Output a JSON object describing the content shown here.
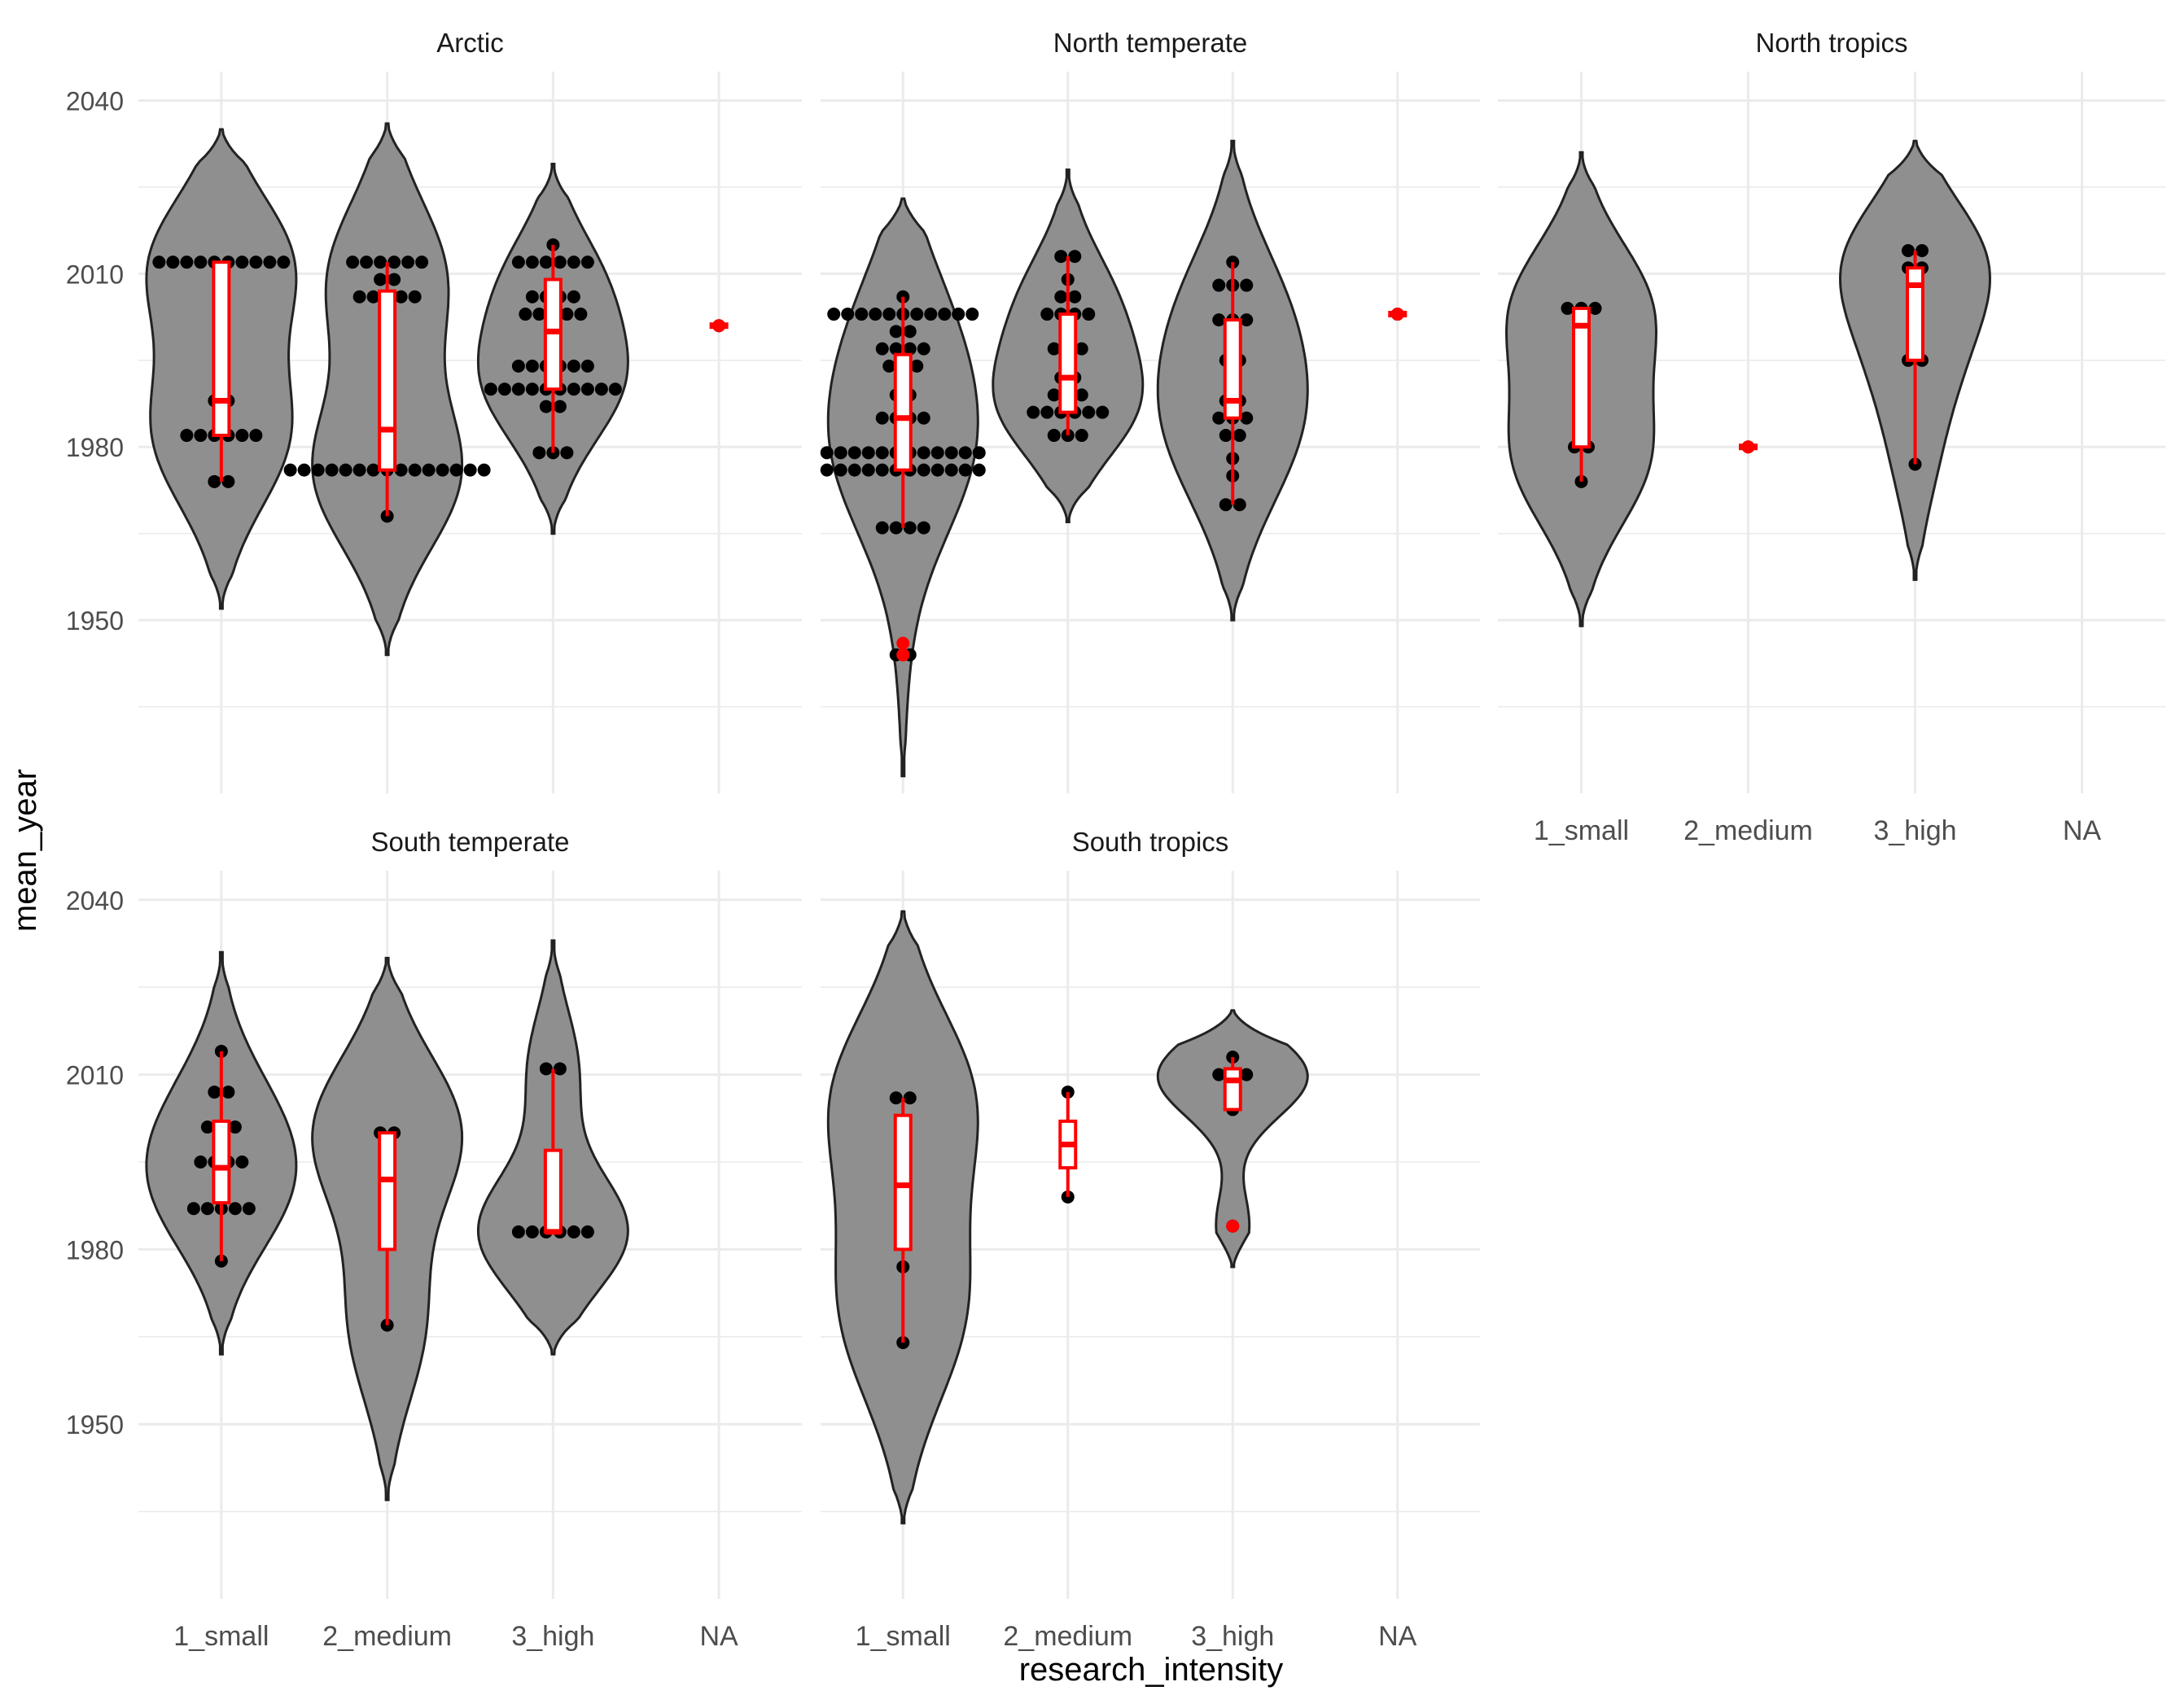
{
  "chart_data": {
    "type": "violin",
    "facet_by": "region",
    "xlabel": "research_intensity",
    "ylabel": "mean_year",
    "categories": [
      "1_small",
      "2_medium",
      "3_high",
      "NA"
    ],
    "ylim": [
      1920,
      2045
    ],
    "y_ticks": [
      1950,
      1980,
      2010,
      2040
    ],
    "grid": true,
    "colors": {
      "violin_fill": "#8f8f8f",
      "violin_stroke": "#222222",
      "box": "#ff0000",
      "point": "#000000",
      "grid": "#ebebeb",
      "text": "#4d4d4d"
    },
    "panels": [
      {
        "title": "Arctic",
        "groups": [
          {
            "category": "1_small",
            "box": {
              "min": 1974,
              "q1": 1982,
              "median": 1988,
              "q3": 2012,
              "max": 2012
            },
            "violin_range": [
              1952,
              2035
            ],
            "points": [
              1974,
              1974,
              1982,
              1982,
              1982,
              1982,
              1982,
              1982,
              1988,
              1988,
              1995,
              2012,
              2012,
              2012,
              2012,
              2012,
              2012,
              2012,
              2012,
              2012,
              2012
            ]
          },
          {
            "category": "2_medium",
            "box": {
              "min": 1968,
              "q1": 1976,
              "median": 1983,
              "q3": 2007,
              "max": 2012
            },
            "violin_range": [
              1944,
              2036
            ],
            "points": [
              1968,
              1976,
              1976,
              1976,
              1976,
              1976,
              1976,
              1976,
              1976,
              1976,
              1976,
              1976,
              1976,
              1976,
              1976,
              1976,
              2006,
              2006,
              2006,
              2006,
              2006,
              2009,
              2009,
              2012,
              2012,
              2012,
              2012,
              2012,
              2012
            ]
          },
          {
            "category": "3_high",
            "box": {
              "min": 1979,
              "q1": 1990,
              "median": 2000,
              "q3": 2009,
              "max": 2015
            },
            "violin_range": [
              1965,
              2029
            ],
            "points": [
              1979,
              1979,
              1979,
              1987,
              1987,
              1990,
              1990,
              1990,
              1990,
              1990,
              1990,
              1990,
              1990,
              1990,
              1990,
              1994,
              1994,
              1994,
              1994,
              1994,
              1994,
              2003,
              2003,
              2003,
              2003,
              2003,
              2006,
              2006,
              2006,
              2006,
              2012,
              2012,
              2012,
              2012,
              2012,
              2012,
              2015
            ]
          },
          {
            "category": "NA",
            "box": {
              "min": 2001,
              "q1": 2001,
              "median": 2001,
              "q3": 2001,
              "max": 2001
            },
            "violin_range": null,
            "points": [
              2001
            ]
          }
        ]
      },
      {
        "title": "North temperate",
        "groups": [
          {
            "category": "1_small",
            "box": {
              "min": 1966,
              "q1": 1976,
              "median": 1985,
              "q3": 1996,
              "max": 2006
            },
            "violin_range": [
              1923,
              2023
            ],
            "outliers": [
              1944,
              1944,
              1946
            ],
            "points": [
              1944,
              1944,
              1966,
              1966,
              1966,
              1966,
              1976,
              1976,
              1976,
              1976,
              1976,
              1976,
              1976,
              1976,
              1976,
              1976,
              1976,
              1976,
              1979,
              1979,
              1979,
              1979,
              1979,
              1979,
              1979,
              1979,
              1979,
              1979,
              1979,
              1979,
              1985,
              1985,
              1985,
              1985,
              1989,
              1989,
              1994,
              1994,
              1994,
              1997,
              1997,
              1997,
              1997,
              2000,
              2000,
              2003,
              2003,
              2003,
              2003,
              2003,
              2003,
              2003,
              2003,
              2003,
              2003,
              2003,
              2006
            ]
          },
          {
            "category": "2_medium",
            "box": {
              "min": 1982,
              "q1": 1986,
              "median": 1992,
              "q3": 2003,
              "max": 2013
            },
            "violin_range": [
              1967,
              2028
            ],
            "points": [
              1982,
              1982,
              1982,
              1986,
              1986,
              1986,
              1986,
              1986,
              1986,
              1989,
              1989,
              1989,
              1992,
              1992,
              1997,
              1997,
              1997,
              2003,
              2003,
              2003,
              2003,
              2006,
              2006,
              2009,
              2013,
              2013
            ]
          },
          {
            "category": "3_high",
            "box": {
              "min": 1970,
              "q1": 1985,
              "median": 1988,
              "q3": 2002,
              "max": 2012
            },
            "violin_range": [
              1950,
              2033
            ],
            "points": [
              1970,
              1970,
              1975,
              1978,
              1982,
              1982,
              1985,
              1985,
              1985,
              1988,
              1988,
              1992,
              1995,
              1995,
              2002,
              2002,
              2002,
              2008,
              2008,
              2008,
              2012
            ]
          },
          {
            "category": "NA",
            "box": {
              "min": 2003,
              "q1": 2003,
              "median": 2003,
              "q3": 2003,
              "max": 2003
            },
            "violin_range": null,
            "points": [
              2003
            ]
          }
        ]
      },
      {
        "title": "North tropics",
        "groups": [
          {
            "category": "1_small",
            "box": {
              "min": 1974,
              "q1": 1980,
              "median": 2001,
              "q3": 2004,
              "max": 2004
            },
            "violin_range": [
              1949,
              2031
            ],
            "points": [
              1974,
              1980,
              1980,
              2004,
              2004,
              2004
            ]
          },
          {
            "category": "2_medium",
            "box": {
              "min": 1980,
              "q1": 1980,
              "median": 1980,
              "q3": 1980,
              "max": 1980
            },
            "violin_range": null,
            "points": [
              1980
            ]
          },
          {
            "category": "3_high",
            "box": {
              "min": 1977,
              "q1": 1995,
              "median": 2008,
              "q3": 2011,
              "max": 2014
            },
            "violin_range": [
              1957,
              2033
            ],
            "points": [
              1977,
              1995,
              1995,
              2011,
              2011,
              2014,
              2014
            ]
          },
          {
            "category": "NA",
            "box": null,
            "violin_range": null,
            "points": []
          }
        ]
      },
      {
        "title": "South temperate",
        "groups": [
          {
            "category": "1_small",
            "box": {
              "min": 1978,
              "q1": 1988,
              "median": 1994,
              "q3": 2002,
              "max": 2014
            },
            "violin_range": [
              1962,
              2031
            ],
            "points": [
              1978,
              1987,
              1987,
              1987,
              1987,
              1987,
              1995,
              1995,
              1995,
              1995,
              2001,
              2001,
              2001,
              2007,
              2007,
              2014
            ]
          },
          {
            "category": "2_medium",
            "box": {
              "min": 1967,
              "q1": 1980,
              "median": 1992,
              "q3": 2000,
              "max": 2000
            },
            "violin_range": [
              1937,
              2030
            ],
            "points": [
              1967,
              2000,
              2000
            ]
          },
          {
            "category": "3_high",
            "box": {
              "min": 1983,
              "q1": 1983,
              "median": 1983,
              "q3": 1997,
              "max": 2011
            },
            "violin_range": [
              1962,
              2033
            ],
            "points": [
              1983,
              1983,
              1983,
              1983,
              1983,
              1983,
              2011,
              2011
            ]
          },
          {
            "category": "NA",
            "box": null,
            "violin_range": null,
            "points": []
          }
        ]
      },
      {
        "title": "South tropics",
        "groups": [
          {
            "category": "1_small",
            "box": {
              "min": 1964,
              "q1": 1980,
              "median": 1991,
              "q3": 2003,
              "max": 2006
            },
            "violin_range": [
              1933,
              2038
            ],
            "points": [
              1964,
              1977,
              2006,
              2006
            ]
          },
          {
            "category": "2_medium",
            "box": {
              "min": 1989,
              "q1": 1994,
              "median": 1998,
              "q3": 2002,
              "max": 2007
            },
            "violin_range": null,
            "points": [
              1989,
              2007
            ]
          },
          {
            "category": "3_high",
            "box": {
              "min": 2004,
              "q1": 2004,
              "median": 2009,
              "q3": 2011,
              "max": 2013
            },
            "violin_range": [
              1977,
              2021
            ],
            "outliers": [
              1984
            ],
            "points": [
              1984,
              2004,
              2010,
              2010,
              2010,
              2013
            ]
          },
          {
            "category": "NA",
            "box": null,
            "violin_range": null,
            "points": []
          }
        ]
      }
    ]
  }
}
